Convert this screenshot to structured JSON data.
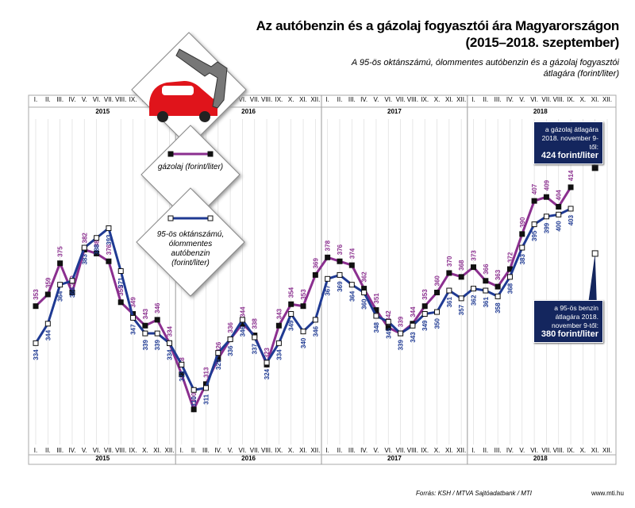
{
  "chart_data": {
    "type": "line",
    "title": "Az autóbenzin és a gázolaj fogyasztói ára Magyarországon (2015–2018. szeptember)",
    "subtitle": "A 95-ös oktánszámú, ólommentes autóbenzin és a gázolaj fogyasztói átlagára (forint/liter)",
    "years": [
      "2015",
      "2016",
      "2017",
      "2018"
    ],
    "categories": [
      "I.",
      "II.",
      "III.",
      "IV.",
      "V.",
      "VI.",
      "VII.",
      "VIII.",
      "IX.",
      "X.",
      "XI.",
      "XII.",
      "I.",
      "II.",
      "III.",
      "IV.",
      "V.",
      "VI.",
      "VII.",
      "VIII.",
      "IX.",
      "X.",
      "XI.",
      "XII.",
      "I.",
      "II.",
      "III.",
      "IV.",
      "V.",
      "VI.",
      "VII.",
      "VIII.",
      "IX.",
      "X.",
      "XI.",
      "XII.",
      "I.",
      "II.",
      "III.",
      "IV.",
      "V.",
      "VI.",
      "VII.",
      "VIII.",
      "IX.",
      "X.",
      "XI.",
      "XII."
    ],
    "ylim": [
      282,
      449
    ],
    "series": [
      {
        "name": "gázolaj (forint/liter)",
        "color": "#8b2f8f",
        "marker": "#111111",
        "values": [
          353,
          359,
          375,
          360,
          382,
          380,
          376,
          355,
          349,
          343,
          346,
          334,
          318,
          300,
          313,
          326,
          336,
          344,
          338,
          323,
          343,
          354,
          353,
          369,
          378,
          376,
          374,
          362,
          351,
          342,
          339,
          344,
          353,
          360,
          370,
          368,
          373,
          366,
          363,
          372,
          390,
          407,
          409,
          404,
          414,
          null,
          null,
          null
        ]
      },
      {
        "name": "95-ös oktánszámú, ólommentes autóbenzin (forint/liter)",
        "color": "#1f3a93",
        "marker": "#ffffff",
        "values": [
          334,
          344,
          364,
          366,
          383,
          388,
          393,
          371,
          347,
          339,
          339,
          334,
          323,
          310,
          311,
          329,
          336,
          346,
          337,
          324,
          334,
          349,
          340,
          346,
          367,
          369,
          364,
          360,
          348,
          345,
          339,
          343,
          349,
          350,
          361,
          357,
          362,
          361,
          358,
          368,
          383,
          395,
          399,
          400,
          403,
          null,
          null,
          null
        ]
      }
    ],
    "callouts": [
      {
        "text": "a gázolaj átlagára 2018. november 9-től:",
        "value": 424,
        "unit": "forint/liter",
        "series": 0,
        "index": 46
      },
      {
        "text": "a 95-ös benzin átlagára 2018. november 9-től:",
        "value": 380,
        "unit": "forint/liter",
        "series": 1,
        "index": 46
      }
    ],
    "source": "Forrás: KSH / MTVA Sajtóadatbank / MTI",
    "website": "www.mti.hu"
  }
}
